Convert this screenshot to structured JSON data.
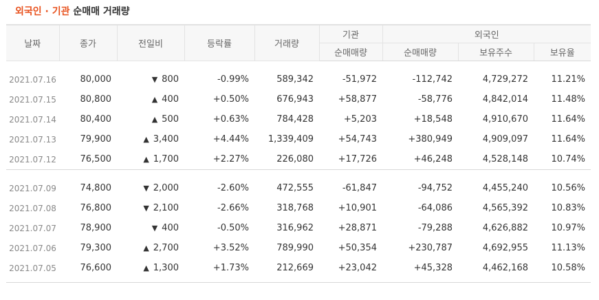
{
  "title": {
    "accent": "외국인 · 기관",
    "rest": "순매매 거래량"
  },
  "headers": {
    "date": "날짜",
    "close": "종가",
    "change": "전일비",
    "rate": "등락률",
    "volume": "거래량",
    "inst_group": "기관",
    "foreign_group": "외국인",
    "inst_net": "순매매량",
    "foreign_net": "순매매량",
    "foreign_holdings": "보유주수",
    "foreign_ratio": "보유율"
  },
  "colors": {
    "up": "#d60000",
    "down": "#0a4fbf",
    "accent": "#e8521e"
  },
  "icons": {
    "up": "▲",
    "down": "▼"
  },
  "groups": [
    {
      "rows": [
        {
          "date": "2021.07.16",
          "close": "80,000",
          "dir": "down",
          "change": "800",
          "rate": "-0.99%",
          "volume": "589,342",
          "inst": "-51,972",
          "inst_dir": "down",
          "foreign": "-112,742",
          "foreign_dir": "down",
          "holdings": "4,729,272",
          "ratio": "11.21%"
        },
        {
          "date": "2021.07.15",
          "close": "80,800",
          "dir": "up",
          "change": "400",
          "rate": "+0.50%",
          "volume": "676,943",
          "inst": "+58,877",
          "inst_dir": "up",
          "foreign": "-58,776",
          "foreign_dir": "down",
          "holdings": "4,842,014",
          "ratio": "11.48%"
        },
        {
          "date": "2021.07.14",
          "close": "80,400",
          "dir": "up",
          "change": "500",
          "rate": "+0.63%",
          "volume": "784,428",
          "inst": "+5,203",
          "inst_dir": "up",
          "foreign": "+18,548",
          "foreign_dir": "up",
          "holdings": "4,910,670",
          "ratio": "11.64%"
        },
        {
          "date": "2021.07.13",
          "close": "79,900",
          "dir": "up",
          "change": "3,400",
          "rate": "+4.44%",
          "volume": "1,339,409",
          "inst": "+54,743",
          "inst_dir": "up",
          "foreign": "+380,949",
          "foreign_dir": "up",
          "holdings": "4,909,097",
          "ratio": "11.64%"
        },
        {
          "date": "2021.07.12",
          "close": "76,500",
          "dir": "up",
          "change": "1,700",
          "rate": "+2.27%",
          "volume": "226,080",
          "inst": "+17,726",
          "inst_dir": "up",
          "foreign": "+46,248",
          "foreign_dir": "up",
          "holdings": "4,528,148",
          "ratio": "10.74%"
        }
      ]
    },
    {
      "rows": [
        {
          "date": "2021.07.09",
          "close": "74,800",
          "dir": "down",
          "change": "2,000",
          "rate": "-2.60%",
          "volume": "472,555",
          "inst": "-61,847",
          "inst_dir": "down",
          "foreign": "-94,752",
          "foreign_dir": "down",
          "holdings": "4,455,240",
          "ratio": "10.56%"
        },
        {
          "date": "2021.07.08",
          "close": "76,800",
          "dir": "down",
          "change": "2,100",
          "rate": "-2.66%",
          "volume": "318,768",
          "inst": "+10,901",
          "inst_dir": "up",
          "foreign": "-64,086",
          "foreign_dir": "down",
          "holdings": "4,565,392",
          "ratio": "10.83%"
        },
        {
          "date": "2021.07.07",
          "close": "78,900",
          "dir": "down",
          "change": "400",
          "rate": "-0.50%",
          "volume": "316,962",
          "inst": "+28,871",
          "inst_dir": "up",
          "foreign": "-79,288",
          "foreign_dir": "down",
          "holdings": "4,626,882",
          "ratio": "10.97%"
        },
        {
          "date": "2021.07.06",
          "close": "79,300",
          "dir": "up",
          "change": "2,700",
          "rate": "+3.52%",
          "volume": "789,990",
          "inst": "+50,354",
          "inst_dir": "up",
          "foreign": "+230,787",
          "foreign_dir": "up",
          "holdings": "4,692,955",
          "ratio": "11.13%"
        },
        {
          "date": "2021.07.05",
          "close": "76,600",
          "dir": "up",
          "change": "1,300",
          "rate": "+1.73%",
          "volume": "212,669",
          "inst": "+23,042",
          "inst_dir": "up",
          "foreign": "+45,328",
          "foreign_dir": "up",
          "holdings": "4,462,168",
          "ratio": "10.58%"
        }
      ]
    }
  ]
}
